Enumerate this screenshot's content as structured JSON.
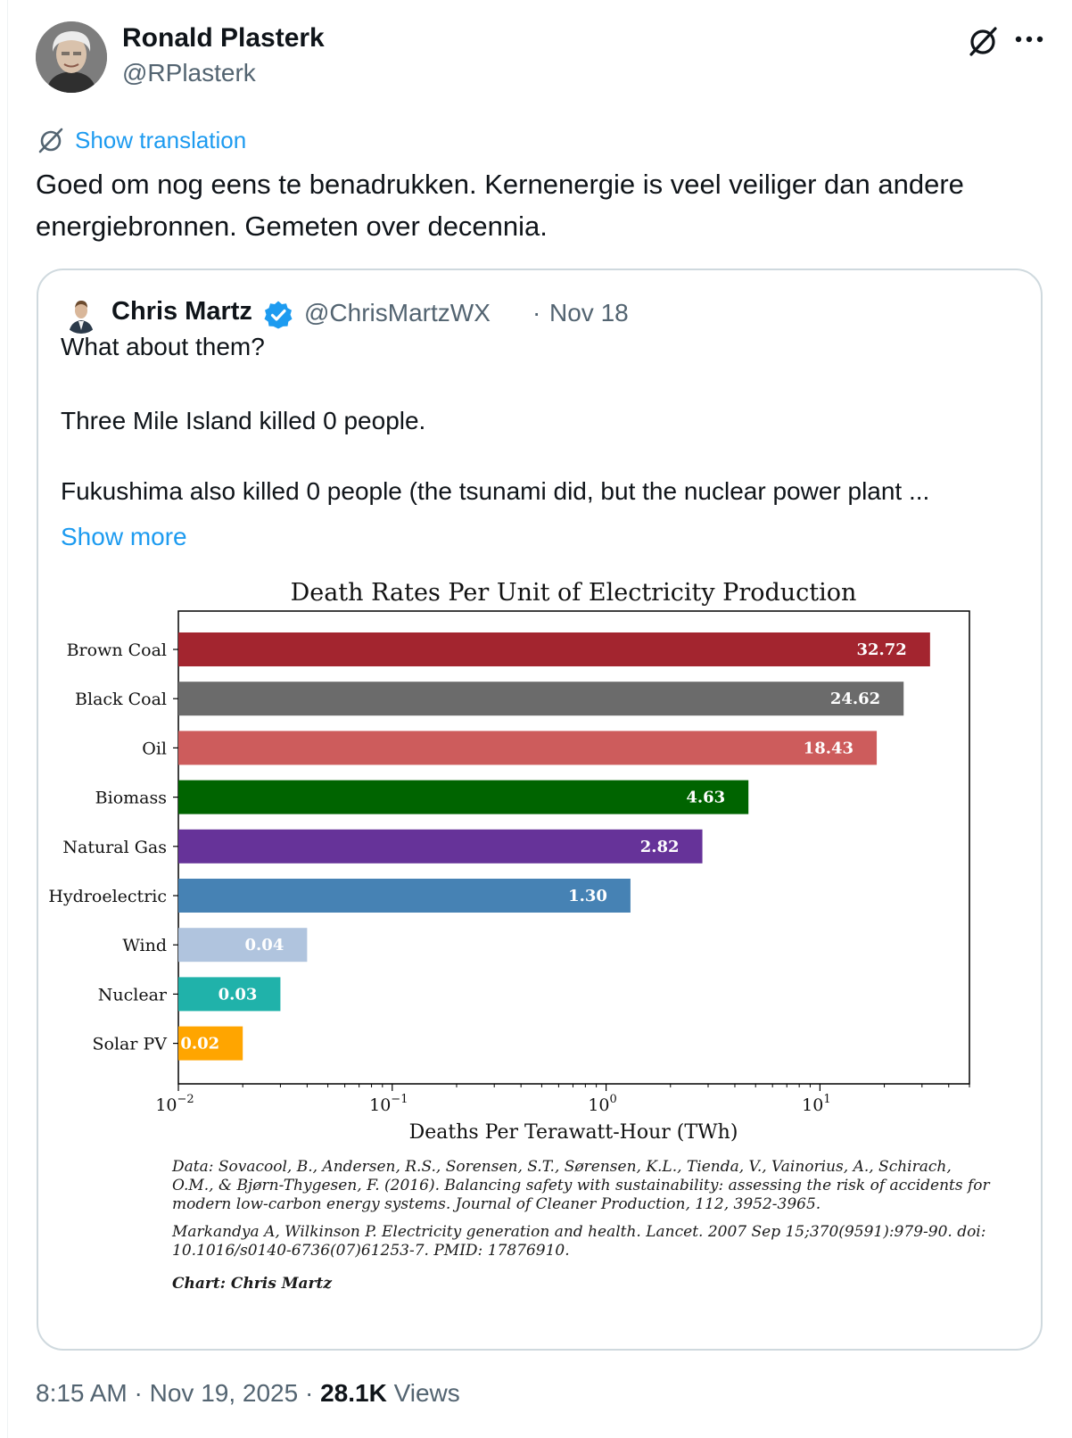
{
  "author": {
    "name": "Ronald Plasterk",
    "handle": "@RPlasterk"
  },
  "translation_link": "Show translation",
  "tweet_text": "Goed om nog eens te benadrukken. Kernenergie is veel veiliger dan andere energiebronnen. Gemeten over decennia.",
  "quoted": {
    "name": "Chris Martz",
    "handle": "@ChrisMartzWX",
    "separator": "·",
    "date": "Nov 18",
    "lines": [
      "What about them?",
      "Three Mile Island killed 0 people.",
      "Fukushima also killed 0 people (the tsunami did, but the nuclear power plant ..."
    ],
    "show_more": "Show more"
  },
  "chart_data": {
    "type": "bar",
    "orientation": "horizontal",
    "title": "Death Rates Per Unit of Electricity Production",
    "xlabel": "Deaths Per Terawatt-Hour (TWh)",
    "x_scale": "log",
    "xlim": [
      0.01,
      50
    ],
    "categories": [
      "Brown Coal",
      "Black Coal",
      "Oil",
      "Biomass",
      "Natural Gas",
      "Hydroelectric",
      "Wind",
      "Nuclear",
      "Solar PV"
    ],
    "values": [
      32.72,
      24.62,
      18.43,
      4.63,
      2.82,
      1.3,
      0.04,
      0.03,
      0.02
    ],
    "value_labels": [
      "32.72",
      "24.62",
      "18.43",
      "4.63",
      "2.82",
      "1.30",
      "0.04",
      "0.03",
      "0.02"
    ],
    "colors": [
      "#a3252f",
      "#6b6b6b",
      "#cd5c5c",
      "#006400",
      "#663399",
      "#4682b4",
      "#b0c4de",
      "#20b2aa",
      "#ffa500"
    ],
    "x_ticks": [
      {
        "value": 0.01,
        "base": "10",
        "exp": "−2"
      },
      {
        "value": 0.1,
        "base": "10",
        "exp": "−1"
      },
      {
        "value": 1,
        "base": "10",
        "exp": "0"
      },
      {
        "value": 10,
        "base": "10",
        "exp": "1"
      }
    ],
    "grid": false,
    "legend": "none"
  },
  "references": {
    "ref1": "Data: Sovacool, B., Andersen, R.S., Sorensen, S.T., Sørensen, K.L., Tienda, V., Vainorius, A., Schirach, O.M., & Bjørn-Thygesen, F. (2016). Balancing safety with sustainability: assessing the risk of accidents for modern low-carbon energy systems. Journal of Cleaner Production, 112, 3952-3965.",
    "ref2": "Markandya A, Wilkinson P. Electricity generation and health. Lancet. 2007 Sep 15;370(9591):979-90. doi: 10.1016/s0140-6736(07)61253-7. PMID: 17876910.",
    "credit": "Chart: Chris Martz"
  },
  "meta": {
    "time": "8:15 AM",
    "sep": "·",
    "date": "Nov 19, 2025",
    "views_count": "28.1K",
    "views_label": "Views"
  },
  "icons": {
    "grok": "grok-icon",
    "more": "more-icon",
    "translate": "translate-icon",
    "verified": "verified-badge-icon"
  },
  "colors": {
    "link": "#1d9bf0",
    "secondary_text": "#536471",
    "border": "#cfd9de"
  }
}
